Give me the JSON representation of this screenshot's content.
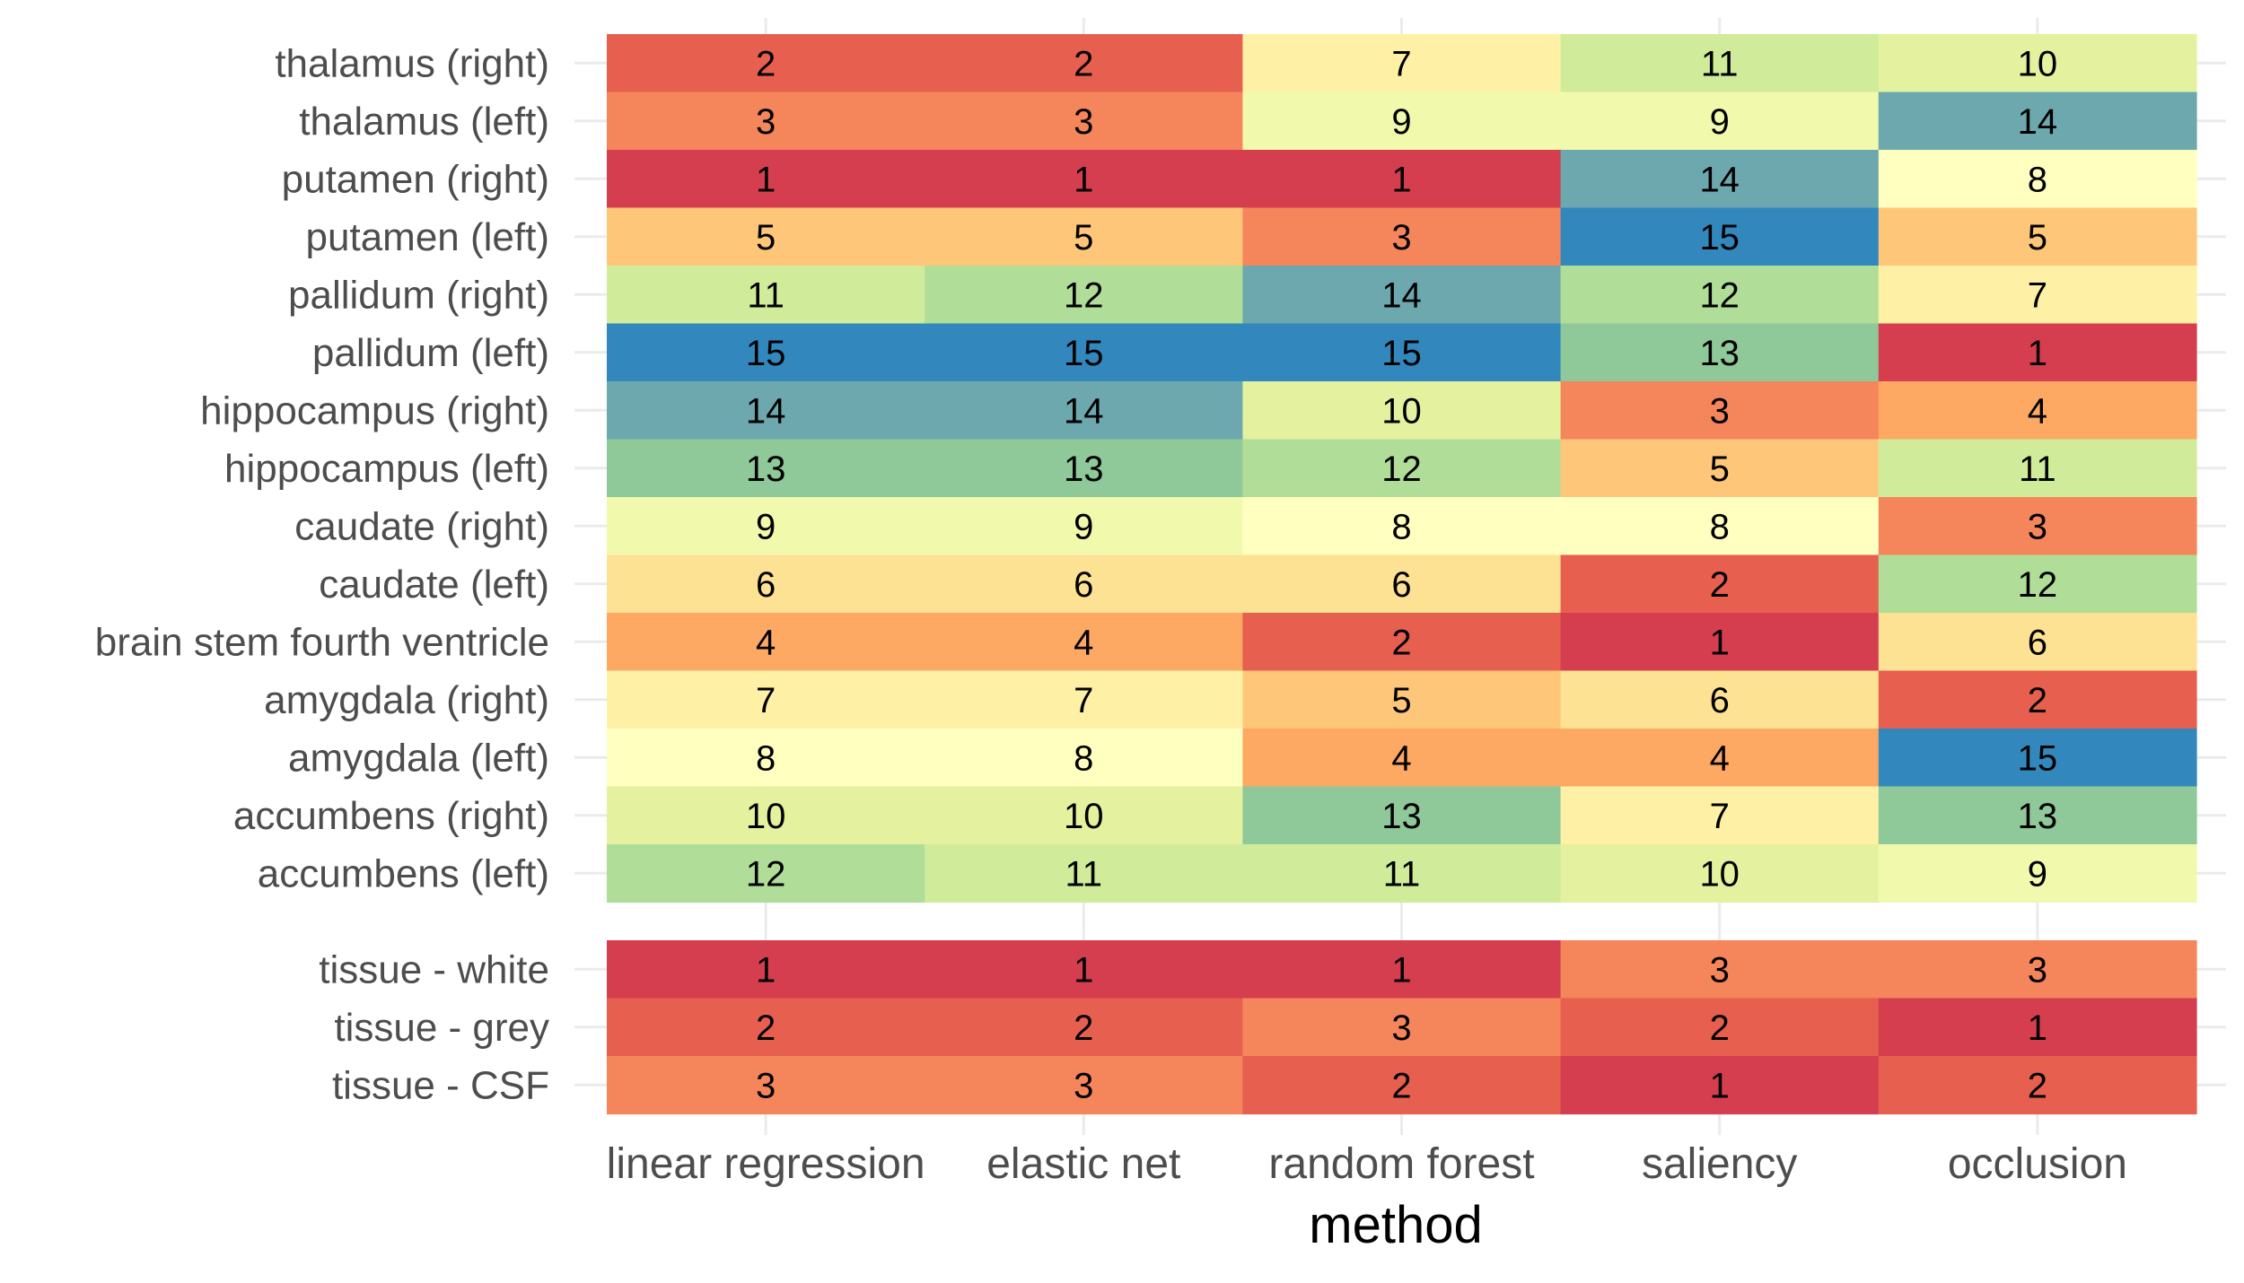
{
  "chart_data": [
    {
      "type": "heatmap",
      "panel": "structures",
      "xlabel": "",
      "ylabel": "",
      "columns": [
        "linear regression",
        "elastic net",
        "random forest",
        "saliency",
        "occlusion"
      ],
      "rows": [
        {
          "label": "thalamus (right)",
          "values": [
            2,
            2,
            7,
            11,
            10
          ]
        },
        {
          "label": "thalamus (left)",
          "values": [
            3,
            3,
            9,
            9,
            14
          ]
        },
        {
          "label": "putamen (right)",
          "values": [
            1,
            1,
            1,
            14,
            8
          ]
        },
        {
          "label": "putamen (left)",
          "values": [
            5,
            5,
            3,
            15,
            5
          ]
        },
        {
          "label": "pallidum (right)",
          "values": [
            11,
            12,
            14,
            12,
            7
          ]
        },
        {
          "label": "pallidum (left)",
          "values": [
            15,
            15,
            15,
            13,
            1
          ]
        },
        {
          "label": "hippocampus (right)",
          "values": [
            14,
            14,
            10,
            3,
            4
          ]
        },
        {
          "label": "hippocampus (left)",
          "values": [
            13,
            13,
            12,
            5,
            11
          ]
        },
        {
          "label": "caudate (right)",
          "values": [
            9,
            9,
            8,
            8,
            3
          ]
        },
        {
          "label": "caudate (left)",
          "values": [
            6,
            6,
            6,
            2,
            12
          ]
        },
        {
          "label": "brain stem fourth ventricle",
          "values": [
            4,
            4,
            2,
            1,
            6
          ]
        },
        {
          "label": "amygdala (right)",
          "values": [
            7,
            7,
            5,
            6,
            2
          ]
        },
        {
          "label": "amygdala (left)",
          "values": [
            8,
            8,
            4,
            4,
            15
          ]
        },
        {
          "label": "accumbens (right)",
          "values": [
            10,
            10,
            13,
            7,
            13
          ]
        },
        {
          "label": "accumbens (left)",
          "values": [
            12,
            11,
            11,
            10,
            9
          ]
        }
      ],
      "color_scale": {
        "type": "spectral",
        "min": 1,
        "max": 15
      },
      "grid": true
    },
    {
      "type": "heatmap",
      "panel": "tissue",
      "xlabel": "method",
      "ylabel": "",
      "columns": [
        "linear regression",
        "elastic net",
        "random forest",
        "saliency",
        "occlusion"
      ],
      "rows": [
        {
          "label": "tissue - white",
          "values": [
            1,
            1,
            1,
            3,
            3
          ]
        },
        {
          "label": "tissue - grey",
          "values": [
            2,
            2,
            3,
            2,
            1
          ]
        },
        {
          "label": "tissue - CSF",
          "values": [
            3,
            3,
            2,
            1,
            2
          ]
        }
      ],
      "color_scale": {
        "type": "spectral",
        "min": 1,
        "max": 15
      },
      "grid": true
    }
  ],
  "colors": {
    "1": "#d53e4f",
    "2": "#e65f4f",
    "3": "#f5865b",
    "4": "#fda863",
    "5": "#fec678",
    "6": "#fde293",
    "7": "#fef1a6",
    "8": "#ffffbf",
    "9": "#f1f9ac",
    "10": "#e4f2a0",
    "11": "#d0eb9a",
    "12": "#b0de98",
    "13": "#8fc899",
    "14": "#6ca8ae",
    "15": "#3288bd"
  }
}
